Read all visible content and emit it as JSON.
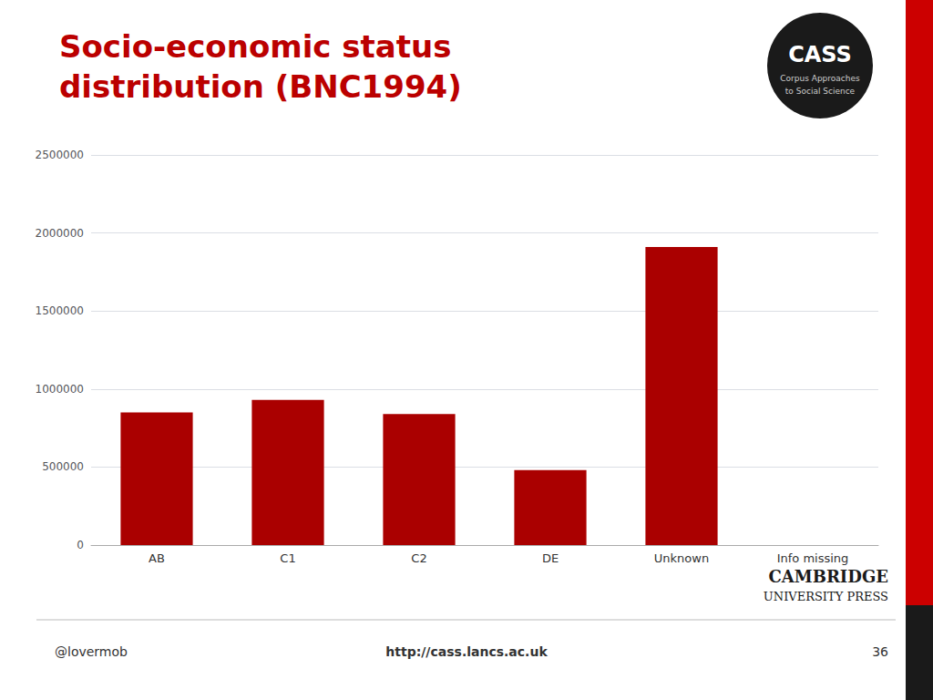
{
  "chart_data": {
    "type": "bar",
    "title": "Socio-economic status\ndistribution (BNC1994)",
    "categories": [
      "AB",
      "C1",
      "C2",
      "DE",
      "Unknown",
      "Info missing"
    ],
    "values": [
      850000,
      930000,
      840000,
      480000,
      1910000,
      0
    ],
    "color": "#aa0000",
    "ylim": [
      0,
      2500000
    ],
    "yticks": [
      0,
      500000,
      1000000,
      1500000,
      2000000,
      2500000
    ],
    "grid": true,
    "annotations": [
      "@lovermob",
      "http://cass.lancs.ac.uk",
      "36",
      "CASS",
      "Corpus Approaches",
      "to Social Science",
      "CAMBRIDGE",
      "UNIVERSITY PRESS"
    ]
  }
}
